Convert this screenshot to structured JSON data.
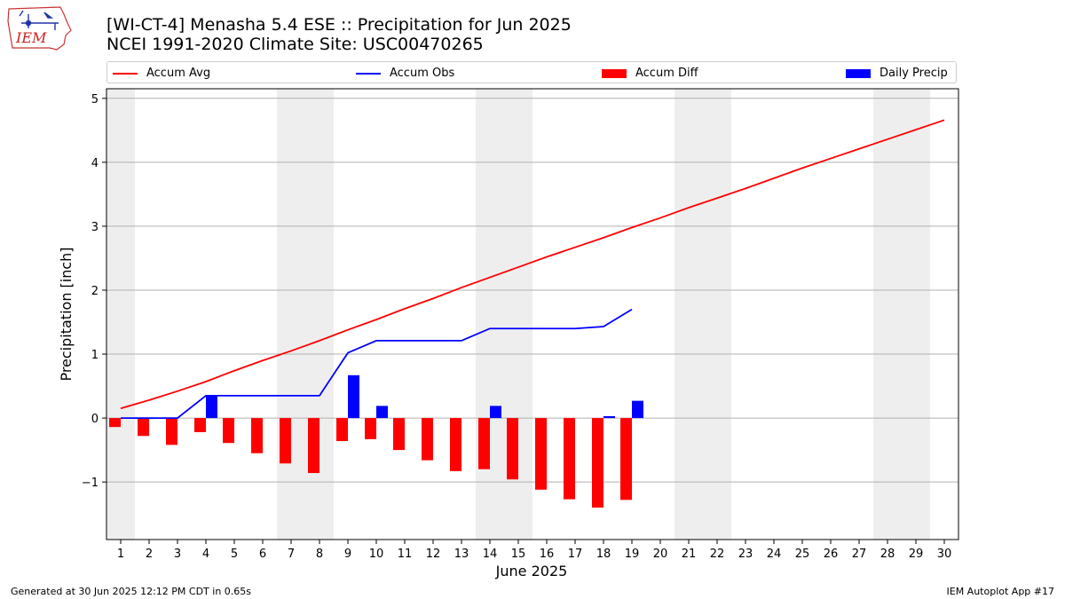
{
  "header": {
    "title_line1": "[WI-CT-4] Menasha 5.4 ESE :: Precipitation for Jun 2025",
    "title_line2": "NCEI 1991-2020 Climate Site: USC00470265"
  },
  "logo": {
    "text": "IEM"
  },
  "legend": {
    "accum_avg": "Accum Avg",
    "accum_obs": "Accum Obs",
    "accum_diff": "Accum Diff",
    "daily_precip": "Daily Precip"
  },
  "footer": {
    "left": "Generated at 30 Jun 2025 12:12 PM CDT in 0.65s",
    "right": "IEM Autoplot App #17"
  },
  "colors": {
    "avg": "#ff0000",
    "obs": "#0000ff",
    "diff": "#ff0000",
    "daily": "#0000ff",
    "weekend_shade": "#eeeeee",
    "grid": "#b0b0b0"
  },
  "chart_data": {
    "type": "bar",
    "xlabel": "June 2025",
    "ylabel": "Precipitation [inch]",
    "ylim": [
      -1.9,
      5.15
    ],
    "yticks": [
      5,
      4,
      3,
      2,
      1,
      0,
      -1
    ],
    "ytick_labels": [
      "5",
      "4",
      "3",
      "2",
      "1",
      "0",
      "−1"
    ],
    "x_days": [
      1,
      2,
      3,
      4,
      5,
      6,
      7,
      8,
      9,
      10,
      11,
      12,
      13,
      14,
      15,
      16,
      17,
      18,
      19,
      20,
      21,
      22,
      23,
      24,
      25,
      26,
      27,
      28,
      29,
      30
    ],
    "shaded_days": [
      1,
      7,
      8,
      14,
      15,
      21,
      22,
      28,
      29
    ],
    "grid": "horizontal",
    "legend_position": "top",
    "series": [
      {
        "name": "Accum Avg",
        "type": "line",
        "days": [
          1,
          2,
          3,
          4,
          5,
          6,
          7,
          8,
          9,
          10,
          11,
          12,
          13,
          14,
          15,
          16,
          17,
          18,
          19,
          20,
          21,
          22,
          23,
          24,
          25,
          26,
          27,
          28,
          29,
          30
        ],
        "values": [
          0.15,
          0.28,
          0.42,
          0.57,
          0.74,
          0.9,
          1.05,
          1.21,
          1.38,
          1.54,
          1.71,
          1.87,
          2.04,
          2.2,
          2.36,
          2.52,
          2.67,
          2.82,
          2.98,
          3.13,
          3.29,
          3.44,
          3.59,
          3.75,
          3.91,
          4.06,
          4.21,
          4.36,
          4.51,
          4.66
        ]
      },
      {
        "name": "Accum Obs",
        "type": "line",
        "days": [
          1,
          2,
          3,
          4,
          5,
          6,
          7,
          8,
          9,
          10,
          11,
          12,
          13,
          14,
          15,
          16,
          17,
          18,
          19
        ],
        "values": [
          0.0,
          0.0,
          0.0,
          0.35,
          0.35,
          0.35,
          0.35,
          0.35,
          1.02,
          1.21,
          1.21,
          1.21,
          1.21,
          1.4,
          1.4,
          1.4,
          1.4,
          1.43,
          1.7
        ]
      },
      {
        "name": "Accum Diff",
        "type": "bar",
        "days": [
          1,
          2,
          3,
          4,
          5,
          6,
          7,
          8,
          9,
          10,
          11,
          12,
          13,
          14,
          15,
          16,
          17,
          18,
          19
        ],
        "values": [
          -0.14,
          -0.28,
          -0.42,
          -0.22,
          -0.39,
          -0.55,
          -0.71,
          -0.86,
          -0.36,
          -0.33,
          -0.5,
          -0.66,
          -0.83,
          -0.8,
          -0.96,
          -1.12,
          -1.27,
          -1.4,
          -1.28
        ]
      },
      {
        "name": "Daily Precip",
        "type": "bar",
        "days": [
          4,
          9,
          10,
          14,
          18,
          19
        ],
        "values": [
          0.35,
          0.67,
          0.19,
          0.19,
          0.03,
          0.27
        ]
      }
    ]
  }
}
